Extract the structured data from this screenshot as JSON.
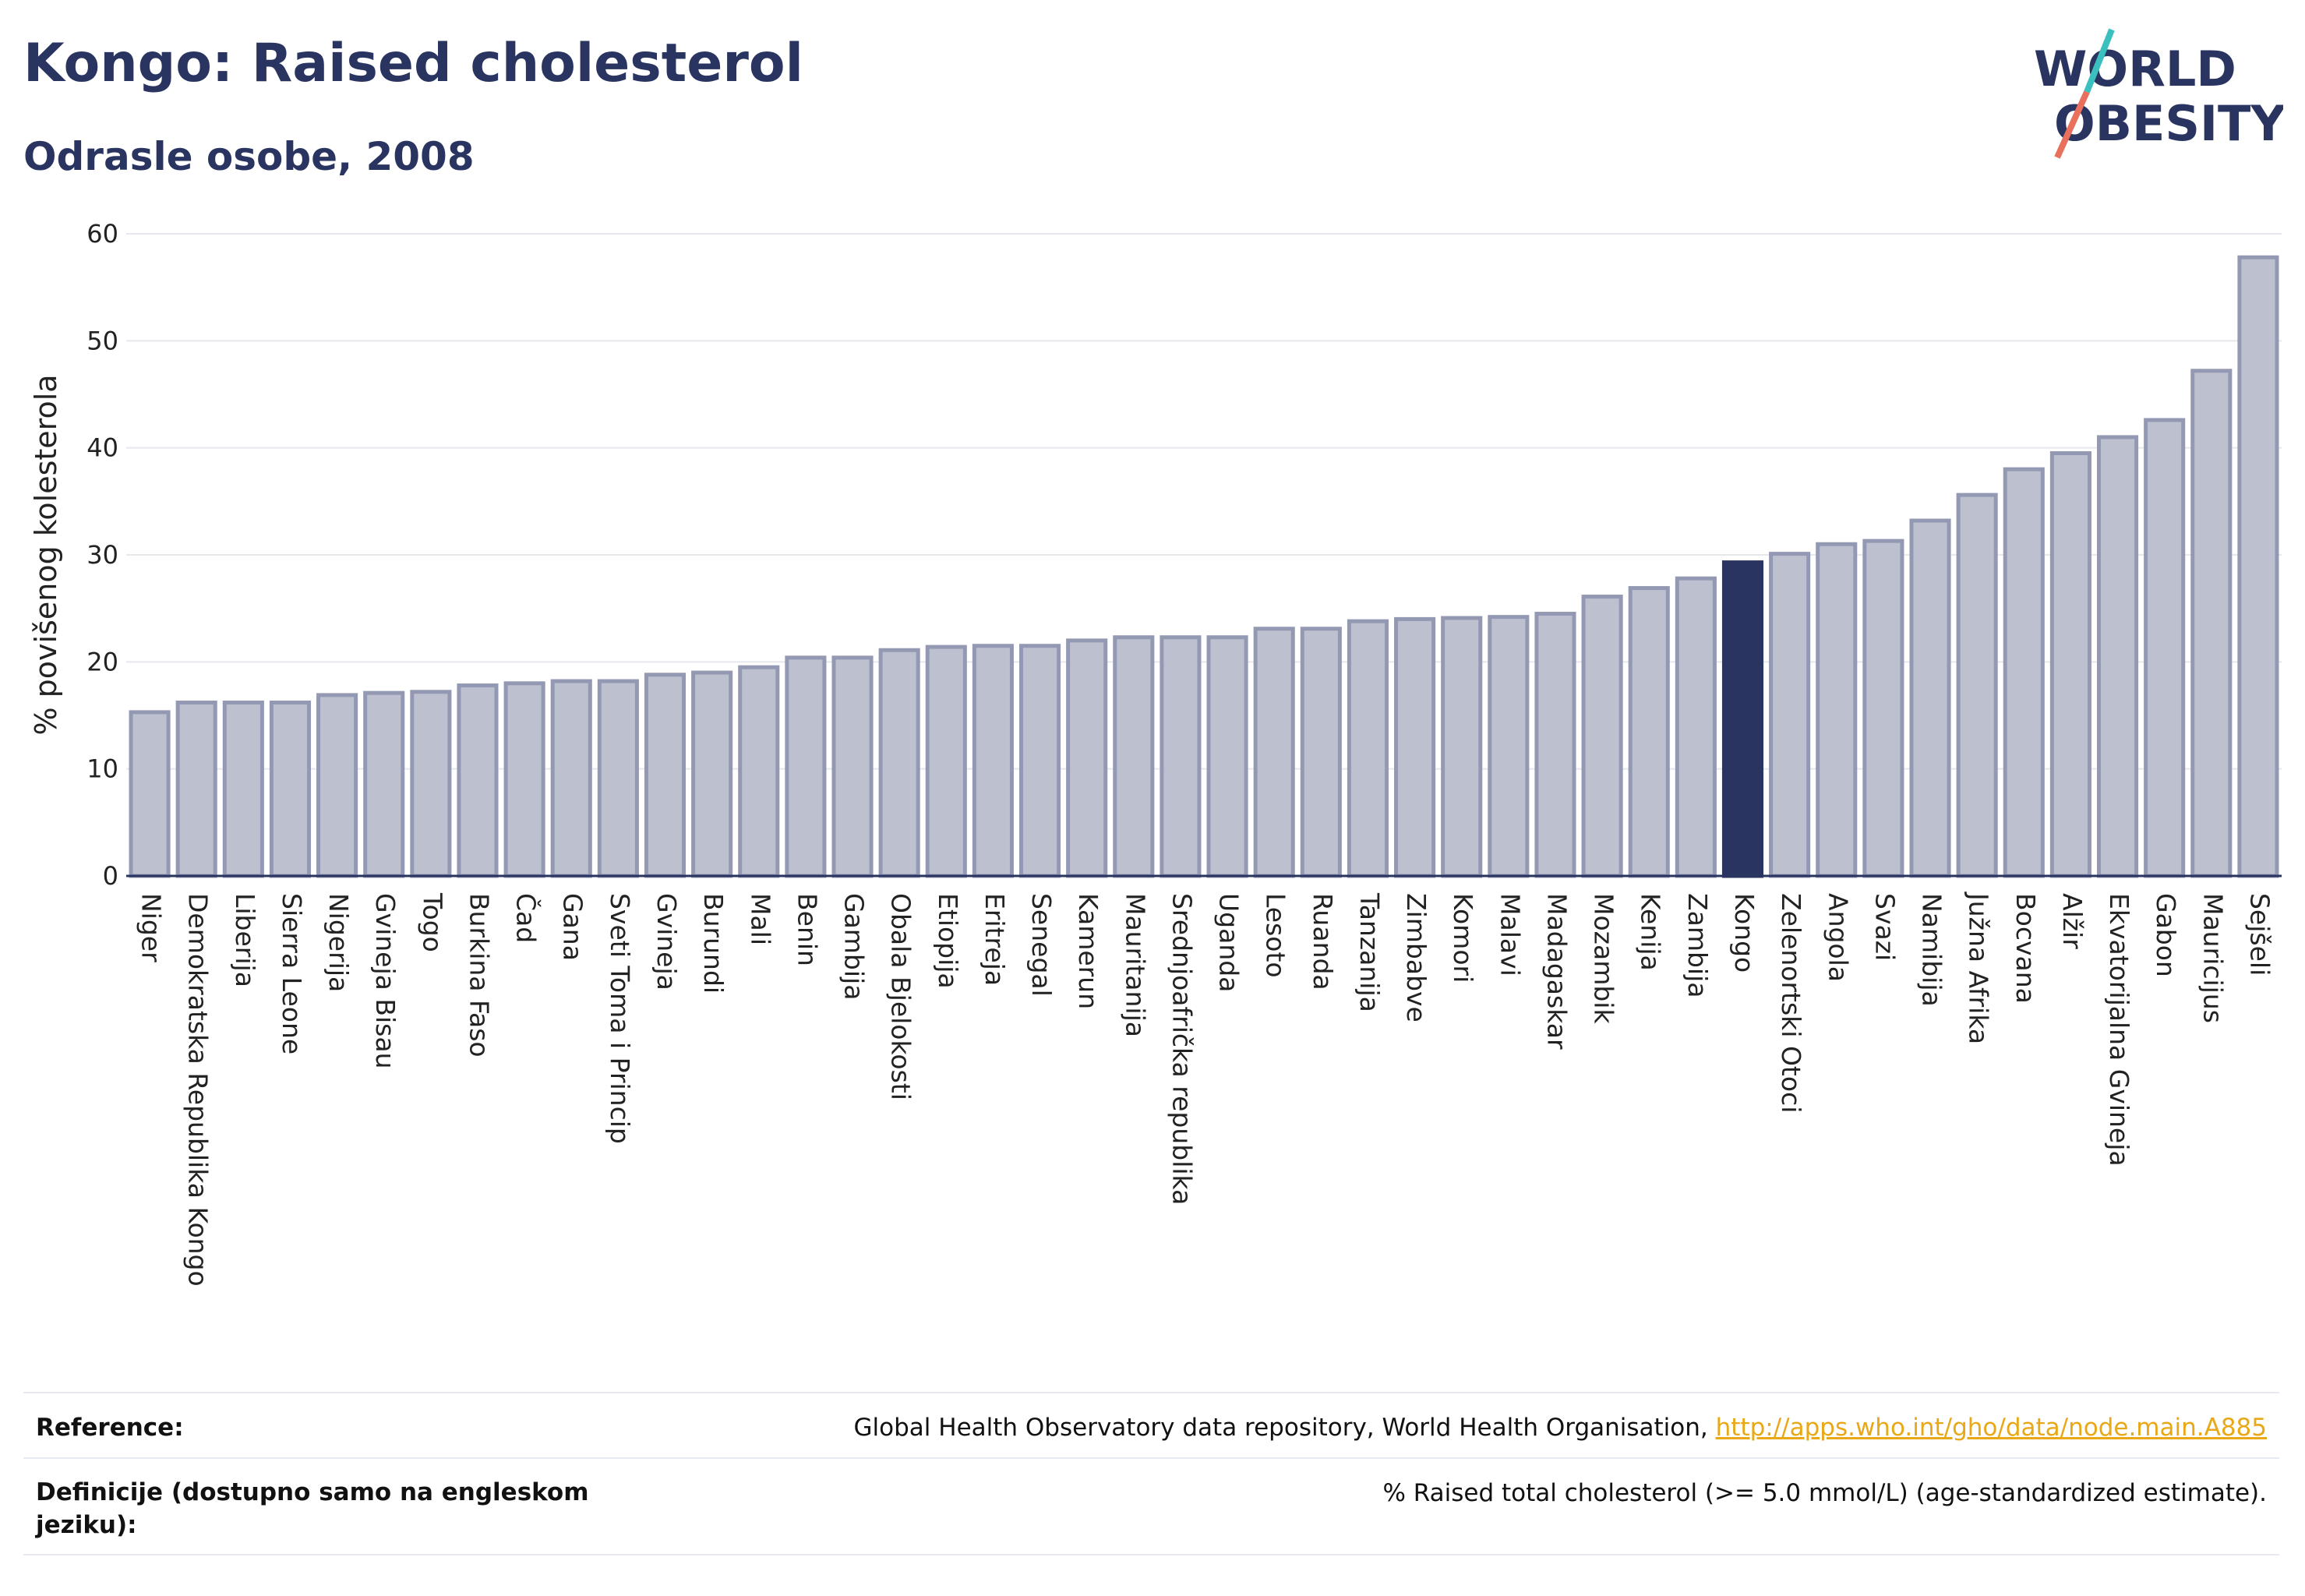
{
  "header": {
    "title": "Kongo: Raised cholesterol",
    "subtitle": "Odrasle osobe, 2008"
  },
  "logo": {
    "line1": "WORLD",
    "line2": "OBESITY",
    "colors": {
      "text": "#2a3460",
      "slash_top": "#3bbfbf",
      "slash_bottom": "#e8705c"
    }
  },
  "colors": {
    "bar_fill": "#bcc0cf",
    "bar_stroke": "#9499b3",
    "highlight_fill": "#2a3460",
    "grid": "#e6e8ee",
    "axis": "#2a3460"
  },
  "chart_data": {
    "type": "bar",
    "title": "Kongo: Raised cholesterol",
    "subtitle": "Odrasle osobe, 2008",
    "xlabel": "",
    "ylabel": "% povišenog kolesterola",
    "ylim": [
      0,
      60
    ],
    "yticks": [
      0,
      10,
      20,
      30,
      40,
      50,
      60
    ],
    "grid": true,
    "highlight": "Kongo",
    "categories": [
      "Niger",
      "Demokratska Republika Kongo",
      "Liberija",
      "Sierra Leone",
      "Nigerija",
      "Gvineja Bisau",
      "Togo",
      "Burkina Faso",
      "Čad",
      "Gana",
      "Sveti Toma i Princip",
      "Gvineja",
      "Burundi",
      "Mali",
      "Benin",
      "Gambija",
      "Obala Bjelokosti",
      "Etiopija",
      "Eritreja",
      "Senegal",
      "Kamerun",
      "Mauritanija",
      "Srednjoafrička republika",
      "Uganda",
      "Lesoto",
      "Ruanda",
      "Tanzanija",
      "Zimbabve",
      "Komori",
      "Malavi",
      "Madagaskar",
      "Mozambik",
      "Kenija",
      "Zambija",
      "Kongo",
      "Zelenortski Otoci",
      "Angola",
      "Svazi",
      "Namibija",
      "Južna Afrika",
      "Bocvana",
      "Alžir",
      "Ekvatorijalna Gvineja",
      "Gabon",
      "Mauricijus",
      "Sejšeli"
    ],
    "values": [
      15.3,
      16.2,
      16.2,
      16.2,
      16.9,
      17.1,
      17.2,
      17.8,
      18.0,
      18.2,
      18.2,
      18.8,
      19.0,
      19.5,
      20.4,
      20.4,
      21.1,
      21.4,
      21.5,
      21.5,
      22.0,
      22.3,
      22.3,
      22.3,
      23.1,
      23.1,
      23.8,
      24.0,
      24.1,
      24.2,
      24.5,
      26.1,
      26.9,
      27.8,
      29.3,
      30.1,
      31.0,
      31.3,
      33.2,
      35.6,
      38.0,
      39.5,
      41.0,
      42.6,
      47.2,
      57.8
    ]
  },
  "footer": {
    "reference_label": "Reference:",
    "reference_text": "Global Health Observatory data repository, World Health Organisation, ",
    "reference_link": "http://apps.who.int/gho/data/node.main.A885",
    "definition_label": "Definicije (dostupno samo na engleskom jeziku):",
    "definition_text": "% Raised total cholesterol (>= 5.0 mmol/L) (age-standardized estimate)."
  }
}
